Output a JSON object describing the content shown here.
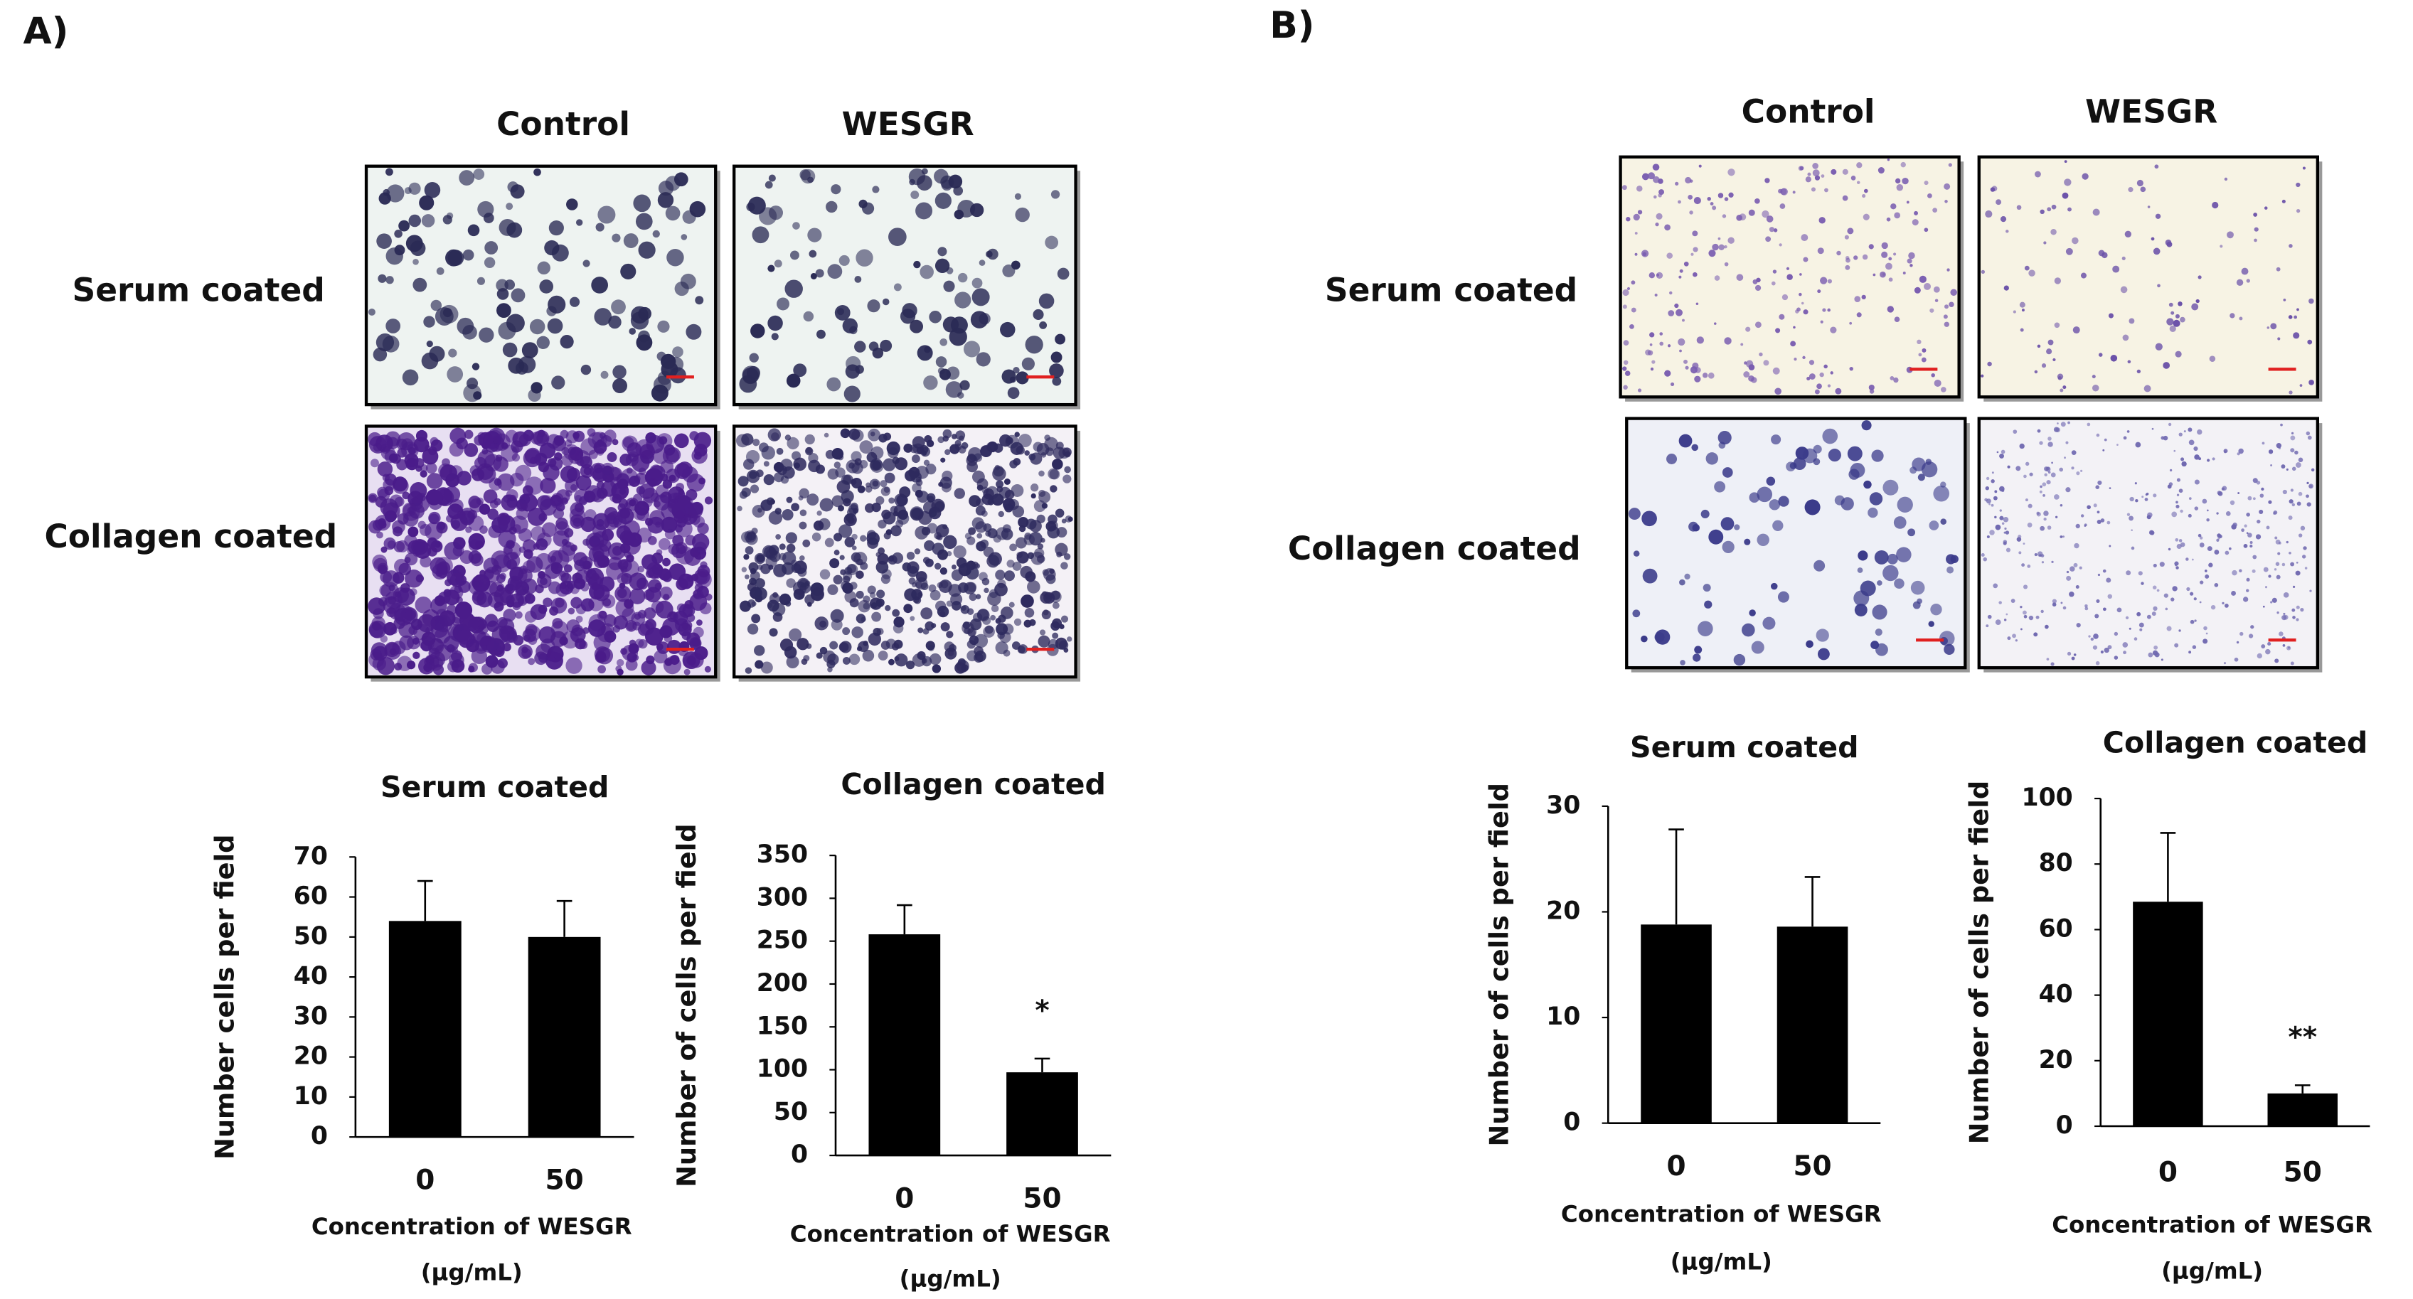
{
  "panels": [
    {
      "label": "A)",
      "columns": [
        "Control",
        "WESGR"
      ],
      "rows": [
        "Serum coated",
        "Collagen coated"
      ]
    },
    {
      "label": "B)",
      "columns": [
        "Control",
        "WESGR"
      ],
      "rows": [
        "Serum coated",
        "Collagen coated"
      ]
    }
  ],
  "chart_data": [
    {
      "type": "bar",
      "title": "Serum coated",
      "y_label": "Number cells per field",
      "x_label": "Concentration of WESGR",
      "x_unit": "(μg/mL)",
      "categories": [
        "0",
        "50"
      ],
      "values": [
        54,
        50
      ],
      "errors": [
        10,
        9
      ],
      "color": "#000000",
      "ylim": [
        0,
        70
      ],
      "yticks": [
        0,
        10,
        20,
        30,
        40,
        50,
        60,
        70
      ]
    },
    {
      "type": "bar",
      "title": "Collagen coated",
      "y_label": "Number of cells per field",
      "x_label": "Concentration of WESGR",
      "x_unit": "(μg/mL)",
      "categories": [
        "0",
        "50"
      ],
      "values": [
        258,
        97
      ],
      "errors": [
        34,
        16
      ],
      "color": "#000000",
      "ylim": [
        0,
        350
      ],
      "yticks": [
        0,
        50,
        100,
        150,
        200,
        250,
        300,
        350
      ],
      "annotations": [
        {
          "text": "*",
          "x": "50"
        }
      ]
    },
    {
      "type": "bar",
      "title": "Serum coated",
      "y_label": "Number of cells per field",
      "x_label": "Concentration of WESGR",
      "x_unit": "(μg/mL)",
      "categories": [
        "0",
        "50"
      ],
      "values": [
        18.8,
        18.6
      ],
      "errors": [
        9,
        4.7
      ],
      "color": "#000000",
      "ylim": [
        0,
        30
      ],
      "yticks": [
        0,
        10,
        20,
        30
      ]
    },
    {
      "type": "bar",
      "title": "Collagen coated",
      "y_label": "Number of cells per field",
      "x_label": "Concentration of WESGR",
      "x_unit": "(μg/mL)",
      "categories": [
        "0",
        "50"
      ],
      "values": [
        68.5,
        10
      ],
      "errors": [
        21,
        2.5
      ],
      "color": "#000000",
      "ylim": [
        0,
        100
      ],
      "yticks": [
        0,
        20,
        40,
        60,
        80,
        100
      ],
      "annotations": [
        {
          "text": "**",
          "x": "50"
        }
      ]
    }
  ]
}
